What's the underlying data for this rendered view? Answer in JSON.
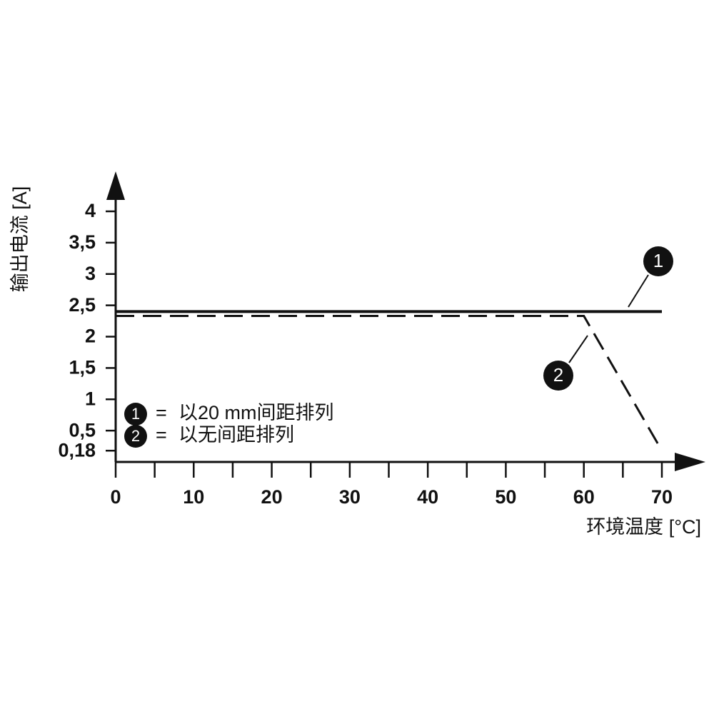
{
  "chart_data": {
    "type": "line",
    "x_label": "环境温度 [°C]",
    "y_label": "输出电流 [A]",
    "legend_separator": "=",
    "series": [
      {
        "name": "以20 mm间距排列",
        "label": "1",
        "color": "#111111",
        "dash": false,
        "x": [
          0,
          70
        ],
        "values": [
          2.4,
          2.4
        ]
      },
      {
        "name": "以无间距排列",
        "label": "2",
        "color": "#111111",
        "dash": true,
        "x": [
          0,
          60,
          70
        ],
        "values": [
          2.33,
          2.33,
          0.18
        ]
      }
    ],
    "xlim": [
      0,
      70
    ],
    "xticks": [
      0,
      10,
      20,
      30,
      40,
      50,
      60,
      70
    ],
    "x_minor_ticks": [
      5,
      15,
      25,
      35,
      45,
      55,
      65
    ],
    "ylim": [
      0,
      4
    ],
    "yticks": [
      {
        "value": 0.18,
        "label": "0,18"
      },
      {
        "value": 0.5,
        "label": "0,5"
      },
      1,
      {
        "value": 1.5,
        "label": "1,5"
      },
      2,
      {
        "value": 2.5,
        "label": "2,5"
      },
      3,
      {
        "value": 3.5,
        "label": "3,5"
      },
      4
    ],
    "grid": false
  }
}
